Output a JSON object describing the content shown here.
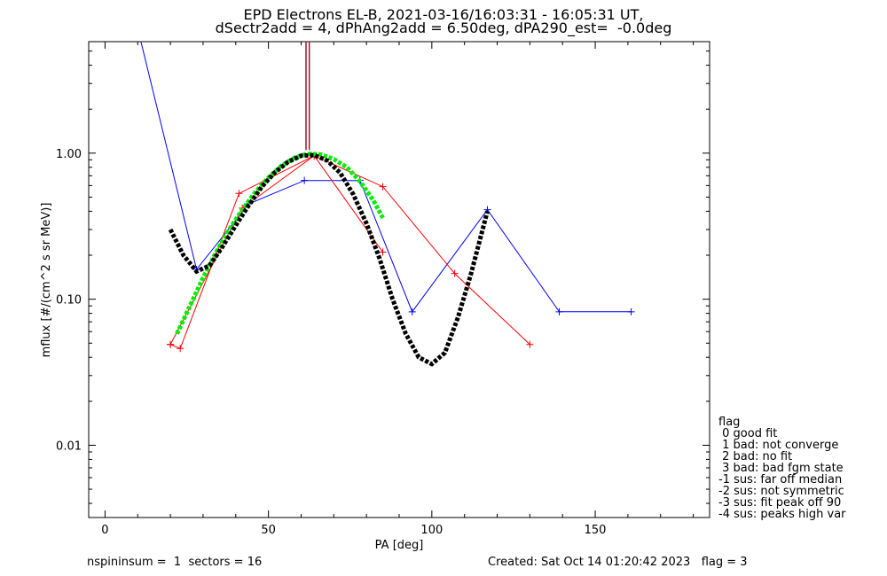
{
  "title_line1": "EPD Electrons EL-B, 2021-03-16/16:03:31 - 16:05:31 UT,",
  "title_line2": "dSectr2add = 4, dPhAng2add = 6.50deg, dPA290_est=  -0.0deg",
  "footer_left": "nspininsum =  1  sectors = 16",
  "footer_right": "Created: Sat Oct 14 01:20:42 2023   flag = 3",
  "legend": {
    "title": "flag",
    "items": [
      " 0 good fit",
      " 1 bad: not converge",
      " 2 bad: no fit",
      " 3 bad: bad fgm state",
      "-1 sus: far off median",
      "-2 sus: not symmetric",
      "-3 sus: fit peak off 90",
      "-4 sus: peaks high var"
    ]
  },
  "colors": {
    "blue": "#0000ff",
    "red": "#ff0000",
    "green": "#00ee00",
    "black": "#000000",
    "marker": "#a0142c"
  },
  "chart_data": {
    "type": "line",
    "title": "EPD Electrons EL-B, 2021-03-16/16:03:31 - 16:05:31 UT, dSectr2add = 4, dPhAng2add = 6.50deg, dPA290_est=  -0.0deg",
    "xlabel": "PA [deg]",
    "ylabel": "mflux [#/(cm^2 s sr MeV)]",
    "xlim": [
      -5,
      185
    ],
    "ylim": [
      0.0032,
      5.8
    ],
    "yscale": "log",
    "xticks": [
      0,
      50,
      100,
      150
    ],
    "xtick_labels": [
      "0",
      "50",
      "100",
      "150"
    ],
    "yticks": [
      0.01,
      0.1,
      1.0
    ],
    "ytick_labels": [
      "0.01",
      "0.10",
      "1.00"
    ],
    "grid": false,
    "series": [
      {
        "color": "blue",
        "style": "solid",
        "marker": "plus",
        "x": [
          11,
          28,
          44,
          61,
          78,
          94,
          117,
          139,
          161
        ],
        "y": [
          5.8,
          0.16,
          0.45,
          0.65,
          0.65,
          0.082,
          0.41,
          0.082,
          0.082
        ],
        "marker_x": [
          28,
          44,
          61,
          78,
          94,
          117,
          139,
          161
        ]
      },
      {
        "color": "red",
        "style": "solid",
        "marker": "plus",
        "x": [
          20,
          23,
          41,
          64,
          85,
          107,
          130
        ],
        "y": [
          0.049,
          0.046,
          0.53,
          0.96,
          0.59,
          0.15,
          0.049
        ]
      },
      {
        "color": "red",
        "style": "solid",
        "marker": "plus",
        "x": [
          20,
          42,
          64,
          85
        ],
        "y": [
          0.049,
          0.42,
          0.96,
          0.21
        ]
      },
      {
        "color": "green",
        "style": "dashed-thick",
        "x": [
          22,
          26,
          30,
          34,
          38,
          42,
          46,
          50,
          54,
          58,
          62,
          66,
          70,
          74,
          78,
          82,
          85
        ],
        "y": [
          0.058,
          0.09,
          0.14,
          0.21,
          0.3,
          0.41,
          0.54,
          0.68,
          0.82,
          0.93,
          0.99,
          0.98,
          0.91,
          0.8,
          0.64,
          0.48,
          0.36
        ]
      },
      {
        "color": "black",
        "style": "dashed-thick",
        "x": [
          20,
          24,
          28,
          32,
          36,
          40,
          44,
          48,
          52,
          56,
          60,
          64,
          68,
          72,
          76,
          80,
          84,
          88,
          92,
          96,
          100,
          104,
          108,
          112,
          117
        ],
        "y": [
          0.3,
          0.2,
          0.155,
          0.17,
          0.23,
          0.32,
          0.44,
          0.59,
          0.74,
          0.87,
          0.96,
          0.97,
          0.89,
          0.73,
          0.52,
          0.33,
          0.19,
          0.1,
          0.058,
          0.04,
          0.036,
          0.043,
          0.075,
          0.15,
          0.4
        ]
      },
      {
        "color": "marker",
        "style": "vertical-marker",
        "x": [
          61.5,
          62.5
        ],
        "y": [
          5.8,
          1.05
        ]
      }
    ]
  }
}
